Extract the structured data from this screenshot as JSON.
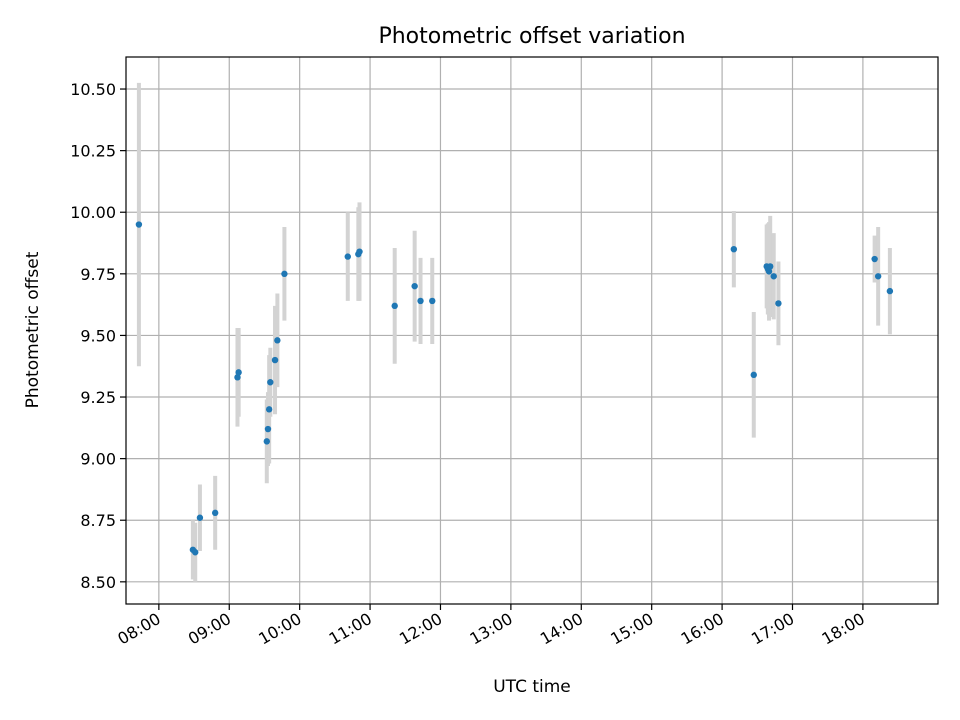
{
  "chart_data": {
    "type": "scatter",
    "title": "Photometric offset variation",
    "xlabel": "UTC time",
    "ylabel": "Photometric offset",
    "grid": true,
    "xlim": [
      "07:32",
      "19:04"
    ],
    "ylim": [
      8.41,
      10.63
    ],
    "x_ticks": [
      "08:00",
      "09:00",
      "10:00",
      "11:00",
      "12:00",
      "13:00",
      "14:00",
      "15:00",
      "16:00",
      "17:00",
      "18:00"
    ],
    "y_ticks": [
      "8.50",
      "8.75",
      "9.00",
      "9.25",
      "9.50",
      "9.75",
      "10.00",
      "10.25",
      "10.50"
    ],
    "colors": {
      "point": "#1f77b4",
      "errorbar": "#d3d3d3",
      "grid": "#b0b0b0"
    },
    "points": [
      {
        "x": "07:43",
        "y": 9.95,
        "err": 0.575
      },
      {
        "x": "08:29",
        "y": 8.63,
        "err": 0.12
      },
      {
        "x": "08:31",
        "y": 8.62,
        "err": 0.12
      },
      {
        "x": "08:35",
        "y": 8.76,
        "err": 0.135
      },
      {
        "x": "08:48",
        "y": 8.78,
        "err": 0.15
      },
      {
        "x": "09:07",
        "y": 9.33,
        "err": 0.2
      },
      {
        "x": "09:08",
        "y": 9.35,
        "err": 0.18
      },
      {
        "x": "09:32",
        "y": 9.07,
        "err": 0.17
      },
      {
        "x": "09:33",
        "y": 9.12,
        "err": 0.15
      },
      {
        "x": "09:34",
        "y": 9.2,
        "err": 0.22
      },
      {
        "x": "09:35",
        "y": 9.31,
        "err": 0.14
      },
      {
        "x": "09:39",
        "y": 9.4,
        "err": 0.22
      },
      {
        "x": "09:41",
        "y": 9.48,
        "err": 0.19
      },
      {
        "x": "09:47",
        "y": 9.75,
        "err": 0.19
      },
      {
        "x": "10:41",
        "y": 9.82,
        "err": 0.18
      },
      {
        "x": "10:50",
        "y": 9.83,
        "err": 0.19
      },
      {
        "x": "10:51",
        "y": 9.84,
        "err": 0.2
      },
      {
        "x": "11:21",
        "y": 9.62,
        "err": 0.235
      },
      {
        "x": "11:38",
        "y": 9.7,
        "err": 0.225
      },
      {
        "x": "11:43",
        "y": 9.64,
        "err": 0.175
      },
      {
        "x": "11:53",
        "y": 9.64,
        "err": 0.175
      },
      {
        "x": "16:10",
        "y": 9.85,
        "err": 0.155
      },
      {
        "x": "16:27",
        "y": 9.34,
        "err": 0.255
      },
      {
        "x": "16:38",
        "y": 9.78,
        "err": 0.17
      },
      {
        "x": "16:39",
        "y": 9.77,
        "err": 0.185
      },
      {
        "x": "16:40",
        "y": 9.76,
        "err": 0.2
      },
      {
        "x": "16:41",
        "y": 9.78,
        "err": 0.205
      },
      {
        "x": "16:44",
        "y": 9.74,
        "err": 0.175
      },
      {
        "x": "16:48",
        "y": 9.63,
        "err": 0.17
      },
      {
        "x": "18:10",
        "y": 9.81,
        "err": 0.095
      },
      {
        "x": "18:13",
        "y": 9.74,
        "err": 0.2
      },
      {
        "x": "18:23",
        "y": 9.68,
        "err": 0.175
      }
    ]
  }
}
